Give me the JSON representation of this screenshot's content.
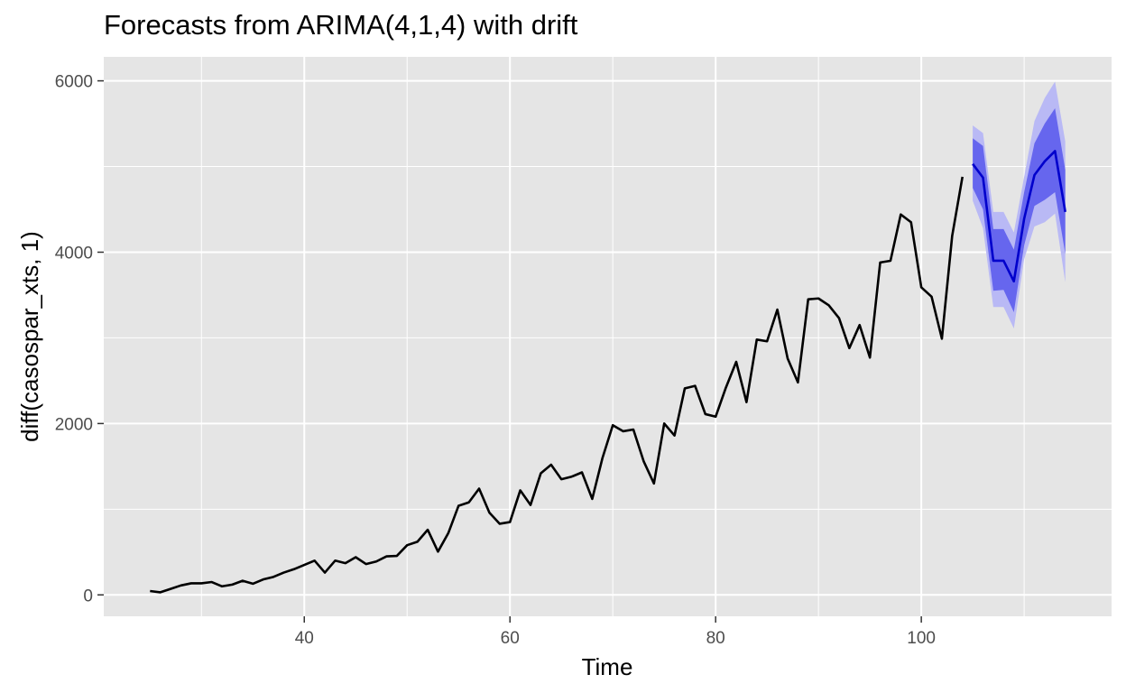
{
  "chart_data": {
    "type": "line",
    "title": "Forecasts from ARIMA(4,1,4) with drift",
    "xlabel": "Time",
    "ylabel": "diff(casospar_xts, 1)",
    "xlim": [
      20.5,
      118.5
    ],
    "ylim": [
      -250,
      6280
    ],
    "x_ticks": [
      40,
      60,
      80,
      100
    ],
    "x_tick_labels": [
      "40",
      "60",
      "80",
      "100"
    ],
    "y_ticks": [
      0,
      2000,
      4000,
      6000
    ],
    "y_tick_labels": [
      "0",
      "2000",
      "4000",
      "6000"
    ],
    "grid": true,
    "legend": "none",
    "colors": {
      "panel": "#e5e5e5",
      "grid": "#ffffff",
      "observed": "#000000",
      "forecast": "#0000cc",
      "band95": "#b9b9f5",
      "band80": "#6666ee"
    },
    "observed": {
      "x": [
        25,
        26,
        27,
        28,
        29,
        30,
        31,
        32,
        33,
        34,
        35,
        36,
        37,
        38,
        39,
        40,
        41,
        42,
        43,
        44,
        45,
        46,
        47,
        48,
        49,
        50,
        51,
        52,
        53,
        54,
        55,
        56,
        57,
        58,
        59,
        60,
        61,
        62,
        63,
        64,
        65,
        66,
        67,
        68,
        69,
        70,
        71,
        72,
        73,
        74,
        75,
        76,
        77,
        78,
        79,
        80,
        81,
        82,
        83,
        84,
        85,
        86,
        87,
        88,
        89,
        90,
        91,
        92,
        93,
        94,
        95,
        96,
        97,
        98,
        99,
        100,
        101,
        102,
        103,
        104
      ],
      "y": [
        45,
        30,
        70,
        110,
        135,
        135,
        150,
        100,
        120,
        165,
        130,
        180,
        210,
        260,
        300,
        350,
        400,
        260,
        400,
        370,
        440,
        360,
        390,
        450,
        455,
        580,
        620,
        760,
        505,
        720,
        1040,
        1080,
        1240,
        960,
        830,
        850,
        1220,
        1050,
        1420,
        1520,
        1350,
        1380,
        1430,
        1120,
        1600,
        1980,
        1910,
        1930,
        1560,
        1300,
        2000,
        1860,
        2410,
        2440,
        2110,
        2080,
        2420,
        2720,
        2250,
        2980,
        2960,
        3330,
        2760,
        2480,
        3450,
        3460,
        3380,
        3230,
        2880,
        3150,
        2770,
        3880,
        3900,
        4440,
        4350,
        3590,
        3480,
        2990,
        4190,
        4880
      ]
    },
    "forecast": {
      "x": [
        105,
        106,
        107,
        108,
        109,
        110,
        111,
        112,
        113,
        114
      ],
      "mean": [
        5030,
        4870,
        3900,
        3900,
        3660,
        4390,
        4900,
        5060,
        5180,
        4470
      ],
      "lo80": [
        4750,
        4500,
        3550,
        3560,
        3300,
        4080,
        4540,
        4610,
        4700,
        3980
      ],
      "hi80": [
        5330,
        5240,
        4270,
        4270,
        4030,
        4700,
        5270,
        5500,
        5680,
        4960
      ],
      "lo95": [
        4600,
        4280,
        3360,
        3360,
        3110,
        3920,
        4300,
        4350,
        4450,
        3650
      ],
      "hi95": [
        5480,
        5390,
        4470,
        4470,
        4230,
        4880,
        5530,
        5800,
        5990,
        5290
      ]
    }
  }
}
